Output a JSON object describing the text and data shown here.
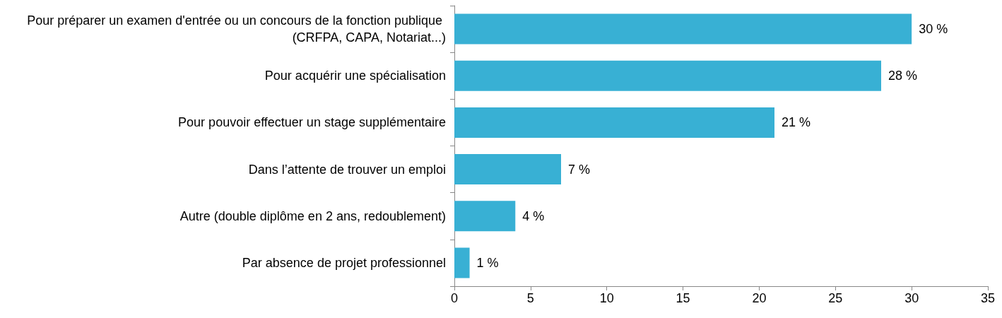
{
  "chart_data": {
    "type": "bar",
    "orientation": "horizontal",
    "categories": [
      "Pour préparer un examen d'entrée ou un concours de la fonction publique (CRFPA, CAPA, Notariat...)",
      "Pour acquérir une spécialisation",
      "Pour pouvoir effectuer un stage supplémentaire",
      "Dans l’attente de trouver un emploi",
      "Autre (double diplôme en 2 ans, redoublement)",
      "Par absence de projet professionnel"
    ],
    "values": [
      30,
      28,
      21,
      7,
      4,
      1
    ],
    "value_labels": [
      "30 %",
      "28 %",
      "21 %",
      "7 %",
      "4 %",
      "1 %"
    ],
    "color": "#38b0d4",
    "xlim": [
      0,
      35
    ],
    "xticks": [
      0,
      5,
      10,
      15,
      20,
      25,
      30,
      35
    ],
    "grid": false
  }
}
